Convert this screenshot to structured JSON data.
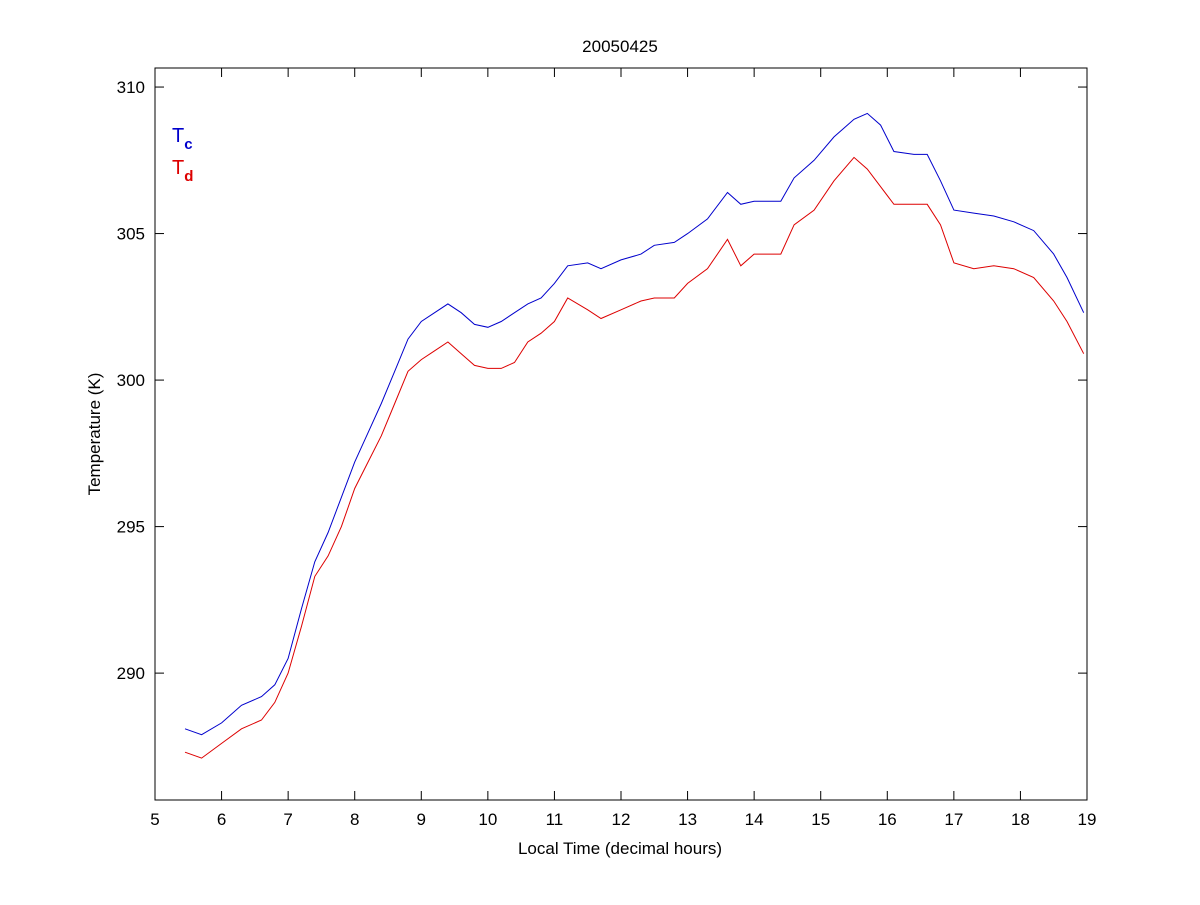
{
  "chart_data": {
    "type": "line",
    "title": "20050425",
    "xlabel": "Local Time (decimal hours)",
    "ylabel": "Temperature (K)",
    "xlim": [
      5,
      19
    ],
    "ylim": [
      285.67,
      310.65
    ],
    "xticks": [
      "5",
      "6",
      "7",
      "8",
      "9",
      "10",
      "11",
      "12",
      "13",
      "14",
      "15",
      "16",
      "17",
      "18",
      "19"
    ],
    "xtick_values": [
      5,
      6,
      7,
      8,
      9,
      10,
      11,
      12,
      13,
      14,
      15,
      16,
      17,
      18,
      19
    ],
    "yticks": [
      "290",
      "295",
      "300",
      "305",
      "310"
    ],
    "ytick_values": [
      290,
      295,
      300,
      305,
      310
    ],
    "grid": false,
    "legend_position": "top-left",
    "x": [
      5.45,
      5.7,
      6.0,
      6.3,
      6.6,
      6.8,
      7.0,
      7.2,
      7.4,
      7.6,
      7.8,
      8.0,
      8.2,
      8.4,
      8.6,
      8.8,
      9.0,
      9.2,
      9.4,
      9.6,
      9.8,
      10.0,
      10.2,
      10.4,
      10.6,
      10.8,
      11.0,
      11.2,
      11.5,
      11.7,
      12.0,
      12.3,
      12.5,
      12.8,
      13.0,
      13.3,
      13.6,
      13.8,
      14.0,
      14.4,
      14.6,
      14.9,
      15.2,
      15.5,
      15.7,
      15.9,
      16.1,
      16.4,
      16.6,
      16.8,
      17.0,
      17.3,
      17.6,
      17.9,
      18.2,
      18.5,
      18.7,
      18.95
    ],
    "series": [
      {
        "name": "Tc",
        "label_main": "T",
        "label_sub": "c",
        "color": "#0000cc",
        "values": [
          288.1,
          287.9,
          288.3,
          288.9,
          289.2,
          289.6,
          290.5,
          292.2,
          293.8,
          294.8,
          296.0,
          297.2,
          298.2,
          299.2,
          300.3,
          301.4,
          302.0,
          302.3,
          302.6,
          302.3,
          301.9,
          301.8,
          302.0,
          302.3,
          302.6,
          302.8,
          303.3,
          303.9,
          304.0,
          303.8,
          304.1,
          304.3,
          304.6,
          304.7,
          305.0,
          305.5,
          306.4,
          306.0,
          306.1,
          306.1,
          306.9,
          307.5,
          308.3,
          308.9,
          309.1,
          308.7,
          307.8,
          307.7,
          307.7,
          306.8,
          305.8,
          305.7,
          305.6,
          305.4,
          305.1,
          304.3,
          303.5,
          302.3
        ]
      },
      {
        "name": "Td",
        "label_main": "T",
        "label_sub": "d",
        "color": "#dd0000",
        "values": [
          287.3,
          287.1,
          287.6,
          288.1,
          288.4,
          289.0,
          290.0,
          291.6,
          293.3,
          294.0,
          295.0,
          296.3,
          297.2,
          298.1,
          299.2,
          300.3,
          300.7,
          301.0,
          301.3,
          300.9,
          300.5,
          300.4,
          300.4,
          300.6,
          301.3,
          301.6,
          302.0,
          302.8,
          302.4,
          302.1,
          302.4,
          302.7,
          302.8,
          302.8,
          303.3,
          303.8,
          304.8,
          303.9,
          304.3,
          304.3,
          305.3,
          305.8,
          306.8,
          307.6,
          307.2,
          306.6,
          306.0,
          306.0,
          306.0,
          305.3,
          304.0,
          303.8,
          303.9,
          303.8,
          303.5,
          302.7,
          302.0,
          300.9
        ]
      }
    ]
  }
}
